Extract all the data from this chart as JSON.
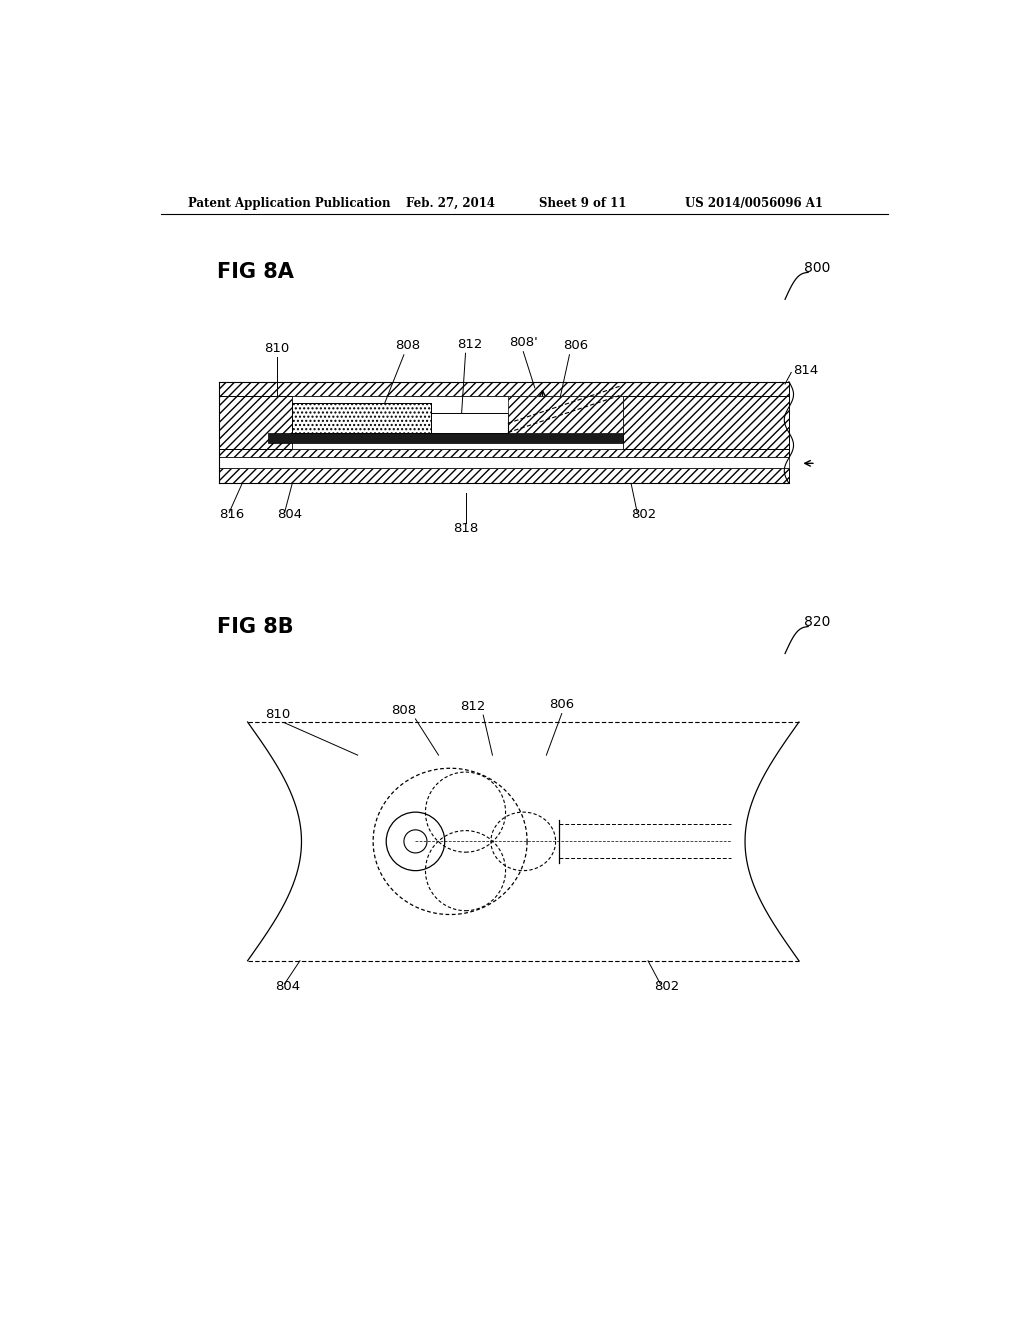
{
  "bg_color": "#ffffff",
  "header_text": "Patent Application Publication",
  "header_date": "Feb. 27, 2014",
  "header_sheet": "Sheet 9 of 11",
  "header_patent": "US 2014/0056096 A1",
  "fig8a_label": "FIG 8A",
  "fig8b_label": "FIG 8B",
  "ref_800": "800",
  "ref_820": "820",
  "ref_802": "802",
  "ref_804": "804",
  "ref_806": "806",
  "ref_808": "808",
  "ref_808p": "808'",
  "ref_810": "810",
  "ref_812": "812",
  "ref_814": "814",
  "ref_816": "816",
  "ref_818": "818",
  "dark_fill": "#1a1a1a"
}
